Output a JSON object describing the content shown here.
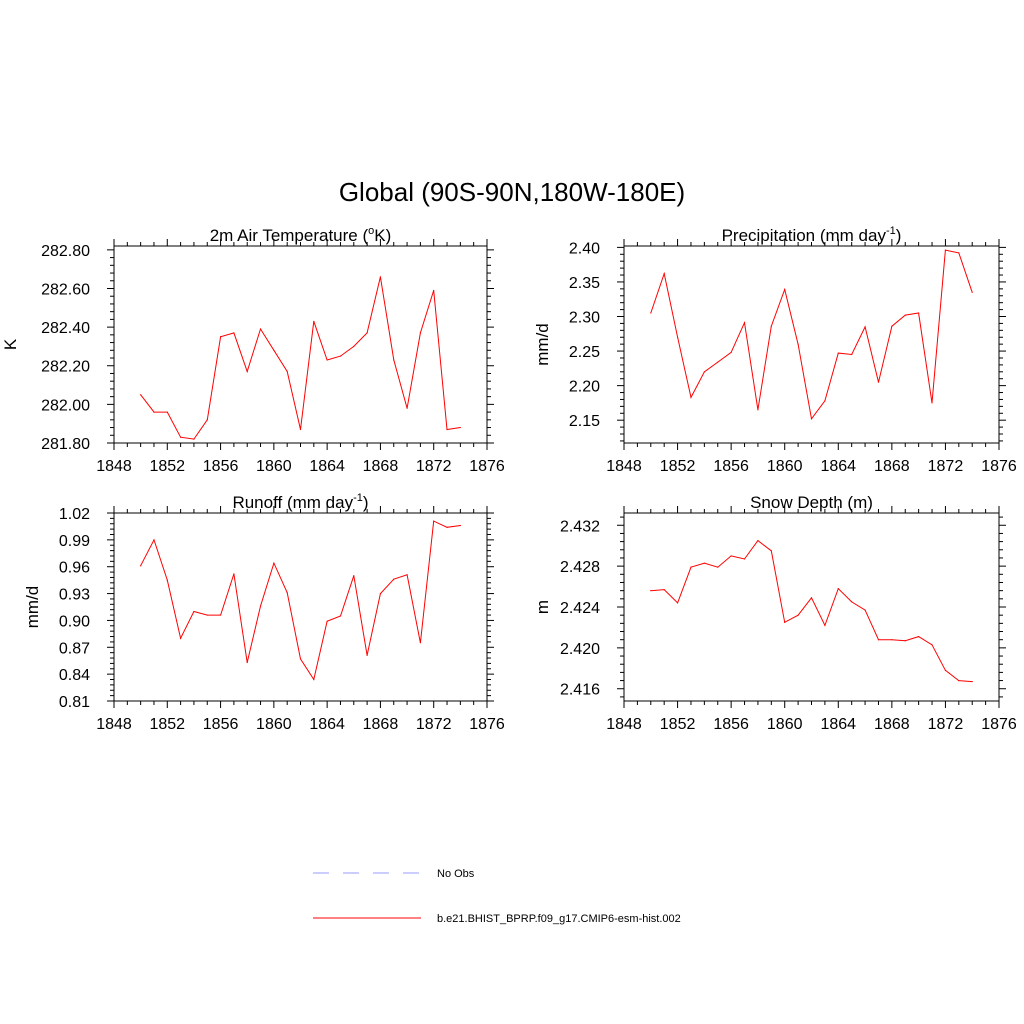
{
  "title": "Global (90S-90N,180W-180E)",
  "legend": {
    "items": [
      {
        "label": "No Obs",
        "color": "#9999ff",
        "dash": "dashed"
      },
      {
        "label": "b.e21.BHIST_BPRP.f09_g17.CMIP6-esm-hist.002",
        "color": "#ff0000",
        "dash": "solid"
      }
    ]
  },
  "chart_data": [
    {
      "type": "line",
      "title": "2m Air Temperature (",
      "title_sup": "o",
      "title_after": "K)",
      "ylabel": "K",
      "xlim": [
        1848,
        1876
      ],
      "xticks": [
        1848,
        1852,
        1856,
        1860,
        1864,
        1868,
        1872,
        1876
      ],
      "ylim": [
        281.8,
        282.82
      ],
      "yticks": [
        281.8,
        282.0,
        282.2,
        282.4,
        282.6,
        282.8
      ],
      "ytick_labels": [
        "281.80",
        "282.00",
        "282.20",
        "282.40",
        "282.60",
        "282.80"
      ],
      "series": [
        {
          "color": "#ff0000",
          "x": [
            1850,
            1851,
            1852,
            1853,
            1854,
            1855,
            1856,
            1857,
            1858,
            1859,
            1860,
            1861,
            1862,
            1863,
            1864,
            1865,
            1866,
            1867,
            1868,
            1869,
            1870,
            1871,
            1872,
            1873,
            1874
          ],
          "values": [
            282.05,
            281.96,
            281.96,
            281.83,
            281.82,
            281.92,
            282.35,
            282.37,
            282.17,
            282.39,
            282.28,
            282.17,
            281.87,
            282.43,
            282.23,
            282.25,
            282.3,
            282.37,
            282.66,
            282.23,
            281.98,
            282.37,
            282.59,
            281.87,
            281.88
          ]
        }
      ]
    },
    {
      "type": "line",
      "title": "Precipitation (mm day",
      "title_sup": "-1",
      "title_after": ")",
      "ylabel": "mm/d",
      "xlim": [
        1848,
        1876
      ],
      "xticks": [
        1848,
        1852,
        1856,
        1860,
        1864,
        1868,
        1872,
        1876
      ],
      "ylim": [
        2.117,
        2.402
      ],
      "yticks": [
        2.15,
        2.2,
        2.25,
        2.3,
        2.35,
        2.4
      ],
      "ytick_labels": [
        "2.15",
        "2.20",
        "2.25",
        "2.30",
        "2.35",
        "2.40"
      ],
      "series": [
        {
          "color": "#ff0000",
          "x": [
            1850,
            1851,
            1852,
            1853,
            1854,
            1855,
            1856,
            1857,
            1858,
            1859,
            1860,
            1861,
            1862,
            1863,
            1864,
            1865,
            1866,
            1867,
            1868,
            1869,
            1870,
            1871,
            1872,
            1873,
            1874
          ],
          "values": [
            2.305,
            2.362,
            2.27,
            2.183,
            2.22,
            2.234,
            2.248,
            2.291,
            2.165,
            2.286,
            2.339,
            2.26,
            2.152,
            2.178,
            2.247,
            2.245,
            2.285,
            2.205,
            2.286,
            2.302,
            2.305,
            2.175,
            2.396,
            2.392,
            2.335
          ]
        }
      ]
    },
    {
      "type": "line",
      "title": "Runoff (mm day",
      "title_sup": "-1",
      "title_after": ")",
      "ylabel": "mm/d",
      "xlim": [
        1848,
        1876
      ],
      "xticks": [
        1848,
        1852,
        1856,
        1860,
        1864,
        1868,
        1872,
        1876
      ],
      "ylim": [
        0.81,
        1.02
      ],
      "yticks": [
        0.81,
        0.84,
        0.87,
        0.9,
        0.93,
        0.96,
        0.99,
        1.02
      ],
      "ytick_labels": [
        "0.81",
        "0.84",
        "0.87",
        "0.90",
        "0.93",
        "0.96",
        "0.99",
        "1.02"
      ],
      "series": [
        {
          "color": "#ff0000",
          "x": [
            1850,
            1851,
            1852,
            1853,
            1854,
            1855,
            1856,
            1857,
            1858,
            1859,
            1860,
            1861,
            1862,
            1863,
            1864,
            1865,
            1866,
            1867,
            1868,
            1869,
            1870,
            1871,
            1872,
            1873,
            1874
          ],
          "values": [
            0.961,
            0.99,
            0.945,
            0.88,
            0.91,
            0.906,
            0.906,
            0.952,
            0.853,
            0.916,
            0.964,
            0.931,
            0.857,
            0.834,
            0.899,
            0.905,
            0.95,
            0.861,
            0.93,
            0.946,
            0.951,
            0.875,
            1.011,
            1.004,
            1.006
          ]
        }
      ]
    },
    {
      "type": "line",
      "title": "Snow Depth (m)",
      "title_sup": "",
      "title_after": "",
      "ylabel": "m",
      "xlim": [
        1848,
        1876
      ],
      "xticks": [
        1848,
        1852,
        1856,
        1860,
        1864,
        1868,
        1872,
        1876
      ],
      "ylim": [
        2.4148,
        2.4332
      ],
      "yticks": [
        2.416,
        2.42,
        2.424,
        2.428,
        2.432
      ],
      "ytick_labels": [
        "2.416",
        "2.420",
        "2.424",
        "2.428",
        "2.432"
      ],
      "series": [
        {
          "color": "#ff0000",
          "x": [
            1850,
            1851,
            1852,
            1853,
            1854,
            1855,
            1856,
            1857,
            1858,
            1859,
            1860,
            1861,
            1862,
            1863,
            1864,
            1865,
            1866,
            1867,
            1868,
            1869,
            1870,
            1871,
            1872,
            1873,
            1874
          ],
          "values": [
            2.4256,
            2.4257,
            2.4244,
            2.4279,
            2.4283,
            2.4279,
            2.429,
            2.4287,
            2.4305,
            2.4295,
            2.4225,
            2.4232,
            2.4249,
            2.4222,
            2.4258,
            2.4245,
            2.4237,
            2.4208,
            2.4208,
            2.4207,
            2.4211,
            2.4203,
            2.4178,
            2.4168,
            2.4167
          ]
        }
      ]
    }
  ]
}
